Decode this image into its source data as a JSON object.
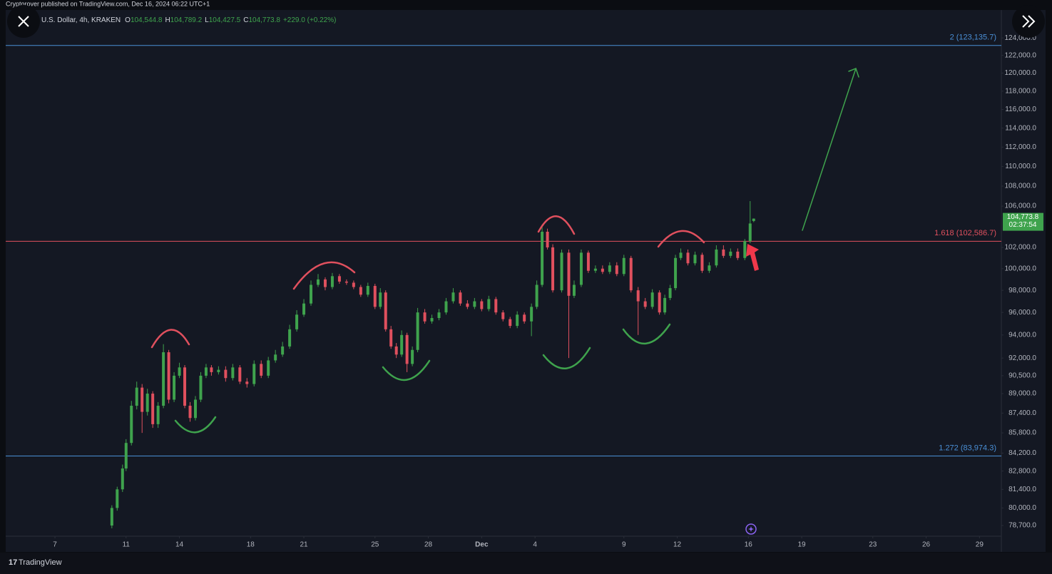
{
  "page": {
    "published": "Cryptorover published on TradingView.com, Dec 16, 2024 06:22 UTC+1",
    "footer": "TradingView"
  },
  "chart_data": {
    "type": "candlestick",
    "symbol": "U.S. Dollar, 4h, KRAKEN",
    "ohlc_header": [
      {
        "key": "O",
        "value": "104,544.8"
      },
      {
        "key": "H",
        "value": "104,789.2"
      },
      {
        "key": "L",
        "value": "104,427.5"
      },
      {
        "key": "C",
        "value": "104,773.8"
      }
    ],
    "change": "+229.0 (+0.22%)",
    "last_price_label": "104,773.8",
    "countdown": "02:37:54",
    "up_color": "#3fa34d",
    "down_color": "#e0505e",
    "log_scale": true,
    "grid": false,
    "xlim": [
      4.23,
      60.23
    ],
    "xticks": [
      7,
      11,
      14,
      18,
      21,
      25,
      28,
      {
        "value": 31,
        "label": "Dec"
      },
      {
        "value": 34,
        "label": "4"
      },
      {
        "value": 39,
        "label": "9"
      },
      {
        "value": 42,
        "label": "12"
      },
      {
        "value": 46,
        "label": "16"
      },
      {
        "value": 49,
        "label": "19"
      },
      {
        "value": 53,
        "label": "23"
      },
      {
        "value": 56,
        "label": "26"
      },
      {
        "value": 59,
        "label": "29"
      }
    ],
    "ylim": [
      77920,
      127190
    ],
    "yticks": [
      {
        "value": 124000,
        "label": "124,000.0"
      },
      {
        "value": 122000,
        "label": "122,000.0"
      },
      {
        "value": 120000,
        "label": "120,000.0"
      },
      {
        "value": 118000,
        "label": "118,000.0"
      },
      {
        "value": 116000,
        "label": "116,000.0"
      },
      {
        "value": 114000,
        "label": "114,000.0"
      },
      {
        "value": 112000,
        "label": "112,000.0"
      },
      {
        "value": 110000,
        "label": "110,000.0"
      },
      {
        "value": 108000,
        "label": "108,000.0"
      },
      {
        "value": 106000,
        "label": "106,000.0"
      },
      {
        "value": 102000,
        "label": "102,000.0"
      },
      {
        "value": 100000,
        "label": "100,000.0"
      },
      {
        "value": 98000,
        "label": "98,000.0"
      },
      {
        "value": 96000,
        "label": "96,000.0"
      },
      {
        "value": 94000,
        "label": "94,000.0"
      },
      {
        "value": 92000,
        "label": "92,000.0"
      },
      {
        "value": 90500,
        "label": "90,500.0"
      },
      {
        "value": 89000,
        "label": "89,000.0"
      },
      {
        "value": 87400,
        "label": "87,400.0"
      },
      {
        "value": 85800,
        "label": "85,800.0"
      },
      {
        "value": 84200,
        "label": "84,200.0"
      },
      {
        "value": 82800,
        "label": "82,800.0"
      },
      {
        "value": 81400,
        "label": "81,400.0"
      },
      {
        "value": 80000,
        "label": "80,000.0"
      },
      {
        "value": 78700,
        "label": "78,700.0"
      }
    ],
    "levels": [
      {
        "label": "2 (123,135.7)",
        "value": 123135.7,
        "color": "#4a8fd6"
      },
      {
        "label": "1.618 (102,586.7)",
        "value": 102586.7,
        "color": "#e0505e"
      },
      {
        "label": "1.272 (83,974.3)",
        "value": 83974.3,
        "color": "#4a8fd6"
      }
    ],
    "x": [
      10.2,
      10.5,
      10.8,
      11.0,
      11.3,
      11.6,
      11.9,
      12.2,
      12.5,
      12.8,
      13.1,
      13.4,
      13.7,
      14.0,
      14.3,
      14.6,
      14.9,
      15.2,
      15.5,
      15.8,
      16.2,
      16.6,
      17.0,
      17.4,
      17.8,
      18.2,
      18.6,
      19.0,
      19.4,
      19.8,
      20.2,
      20.6,
      21.0,
      21.4,
      21.8,
      22.2,
      22.6,
      23.0,
      23.4,
      23.8,
      24.2,
      24.6,
      25.0,
      25.3,
      25.6,
      25.9,
      26.2,
      26.5,
      26.8,
      27.1,
      27.4,
      27.8,
      28.2,
      28.6,
      29.0,
      29.4,
      29.8,
      30.2,
      30.6,
      31.0,
      31.4,
      31.8,
      32.2,
      32.6,
      33.0,
      33.4,
      33.8,
      34.1,
      34.4,
      34.7,
      35.0,
      35.5,
      35.9,
      36.2,
      36.6,
      37.0,
      37.4,
      37.8,
      38.2,
      38.6,
      39.0,
      39.4,
      39.8,
      40.2,
      40.6,
      41.0,
      41.3,
      41.6,
      41.9,
      42.2,
      42.6,
      43.0,
      43.4,
      43.8,
      44.2,
      44.6,
      45.0,
      45.4,
      45.8,
      46.1,
      46.3
    ],
    "open": [
      78700,
      80000,
      81400,
      83000,
      85000,
      88000,
      89500,
      87500,
      89000,
      86500,
      88000,
      92500,
      88500,
      90500,
      91200,
      88000,
      87000,
      88500,
      90500,
      91200,
      90800,
      91000,
      90300,
      91200,
      90000,
      89800,
      91500,
      90500,
      91800,
      92300,
      93000,
      94500,
      95800,
      96800,
      98500,
      99000,
      98300,
      99300,
      98800,
      98700,
      98300,
      97600,
      98400,
      96500,
      97800,
      94500,
      93000,
      92300,
      94000,
      91500,
      92700,
      96000,
      95200,
      95500,
      96000,
      97000,
      97800,
      96800,
      96500,
      97000,
      96300,
      97200,
      96000,
      95400,
      94800,
      95800,
      95200,
      96500,
      98500,
      103500,
      102000,
      98000,
      101500,
      97500,
      98500,
      101500,
      99800,
      100000,
      99700,
      100300,
      99500,
      101000,
      98000,
      97000,
      96500,
      97800,
      96000,
      97300,
      98200,
      101000,
      101500,
      100500,
      101300,
      99800,
      100300,
      101800,
      101200,
      101600,
      101000,
      102600,
      104544.8
    ],
    "high": [
      80200,
      81600,
      83300,
      85300,
      88400,
      90000,
      89800,
      89400,
      89200,
      88300,
      93200,
      92700,
      90800,
      91600,
      91400,
      88300,
      88800,
      90800,
      91500,
      91400,
      91300,
      91300,
      91500,
      91400,
      90300,
      91800,
      91800,
      92100,
      92700,
      93400,
      94900,
      96200,
      97200,
      98900,
      99500,
      99200,
      99600,
      99500,
      99000,
      98900,
      98500,
      98700,
      98600,
      98200,
      98000,
      94800,
      93300,
      94400,
      94200,
      93000,
      96400,
      96300,
      95800,
      96300,
      97300,
      98200,
      98000,
      97100,
      97300,
      97200,
      97500,
      97400,
      96200,
      95600,
      96100,
      96000,
      96800,
      98900,
      104200,
      103800,
      102300,
      101800,
      101800,
      98900,
      101800,
      101700,
      100300,
      100300,
      100600,
      100600,
      101300,
      101200,
      98300,
      97300,
      98100,
      98000,
      97600,
      98500,
      101300,
      101900,
      101800,
      101600,
      101500,
      100600,
      102200,
      102200,
      101900,
      101900,
      102800,
      106500,
      104789.2
    ],
    "low": [
      78500,
      79800,
      81200,
      82800,
      84800,
      87700,
      85800,
      87200,
      86200,
      86200,
      87800,
      88200,
      88300,
      90300,
      87800,
      86700,
      86800,
      88300,
      90300,
      90500,
      90600,
      90000,
      90100,
      89800,
      89500,
      89600,
      90300,
      90300,
      91600,
      92100,
      92800,
      94300,
      95600,
      96600,
      98300,
      98000,
      98100,
      98600,
      98500,
      98100,
      97400,
      97400,
      96300,
      96300,
      94300,
      92800,
      92000,
      92100,
      90800,
      91300,
      92500,
      95000,
      95000,
      95300,
      95800,
      96800,
      96600,
      96300,
      96300,
      96100,
      96100,
      95800,
      95200,
      94600,
      94600,
      95000,
      93900,
      96300,
      98300,
      101800,
      97800,
      97800,
      92000,
      97300,
      98300,
      99600,
      99600,
      99500,
      99500,
      99300,
      99300,
      97800,
      94000,
      96300,
      96300,
      95800,
      95800,
      97100,
      98000,
      100800,
      100300,
      100300,
      99600,
      99600,
      100100,
      101000,
      101000,
      100800,
      100800,
      102400,
      104427.5
    ],
    "close": [
      80000,
      81400,
      83000,
      85000,
      88000,
      89500,
      87500,
      89000,
      86500,
      88000,
      92500,
      88500,
      90500,
      91200,
      88000,
      87000,
      88500,
      90500,
      91200,
      90800,
      91000,
      90300,
      91200,
      90000,
      89800,
      91500,
      90500,
      91800,
      92300,
      93000,
      94500,
      95800,
      96800,
      98500,
      99000,
      98300,
      99300,
      98800,
      98700,
      98300,
      97600,
      98400,
      96500,
      97800,
      94500,
      93000,
      92300,
      94000,
      91500,
      92700,
      96000,
      95200,
      95500,
      96000,
      97000,
      97800,
      96800,
      96500,
      97000,
      96300,
      97200,
      96000,
      95400,
      94800,
      95800,
      95200,
      96500,
      98500,
      103500,
      102000,
      98000,
      101500,
      97500,
      98500,
      101500,
      99800,
      100000,
      99700,
      100300,
      99500,
      101000,
      98000,
      97000,
      96500,
      97800,
      96000,
      97300,
      98200,
      101000,
      101500,
      100500,
      101300,
      99800,
      100300,
      101800,
      101200,
      101600,
      101000,
      102600,
      104300,
      104773.8
    ]
  }
}
